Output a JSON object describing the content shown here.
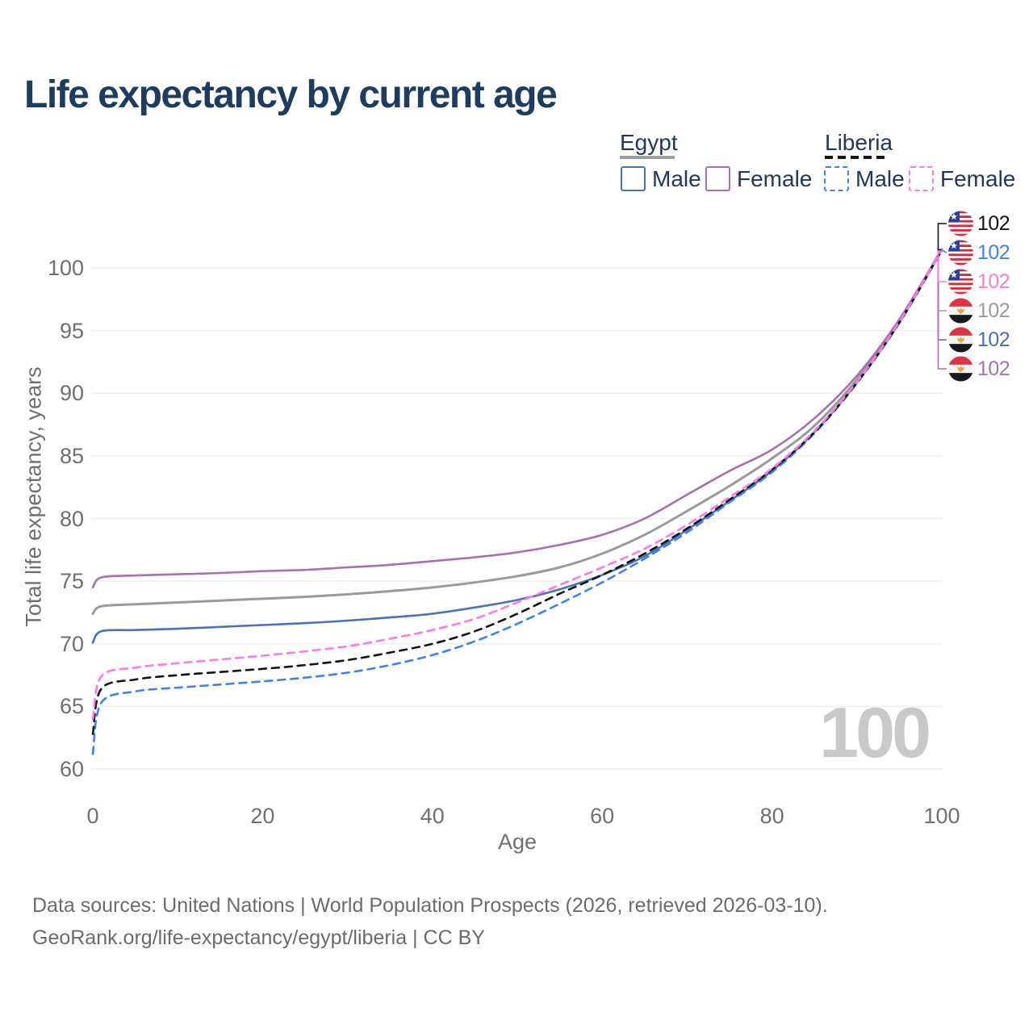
{
  "title": "Life expectancy by current age",
  "overlay_watermark": "100",
  "footer": {
    "line1": "Data sources: United Nations | World Population Prospects (2026, retrieved 2026-03-10).",
    "line2": "GeoRank.org/life-expectancy/egypt/liberia | CC BY"
  },
  "legend": {
    "groups": [
      {
        "title": "Egypt",
        "underline_style": "solid",
        "underline_color": "#9e9e9e",
        "items": [
          {
            "label": "Male",
            "color": "#4a72b8",
            "dash": false
          },
          {
            "label": "Female",
            "color": "#a96fb1",
            "dash": false
          }
        ]
      },
      {
        "title": "Liberia",
        "underline_style": "dashed",
        "underline_color": "#141414",
        "items": [
          {
            "label": "Male",
            "color": "#3d82f0",
            "dash": true
          },
          {
            "label": "Female",
            "color": "#fb7ae3",
            "dash": true
          }
        ]
      }
    ]
  },
  "chart_data": {
    "type": "line",
    "title": "Life expectancy by current age",
    "xlabel": "Age",
    "ylabel": "Total life expectancy, years",
    "xlim": [
      0,
      100
    ],
    "ylim": [
      58.5,
      102.5
    ],
    "x_ticks": [
      0,
      20,
      40,
      60,
      80,
      100
    ],
    "y_ticks": [
      60,
      65,
      70,
      75,
      80,
      85,
      90,
      95,
      100
    ],
    "grid": "horizontal",
    "legend_position": "top-right",
    "gridline_color": "#ececec",
    "ages": [
      0,
      1,
      5,
      10,
      15,
      20,
      25,
      30,
      35,
      40,
      45,
      50,
      55,
      60,
      65,
      70,
      75,
      80,
      85,
      90,
      95,
      100
    ],
    "series": [
      {
        "id": "egypt-all",
        "name": "Egypt",
        "group": "Egypt",
        "kind": "Overall",
        "color": "#9a9a9a",
        "dash": false,
        "width": 3,
        "flag": "egypt",
        "flag_order": 3,
        "end_label": "102",
        "values": [
          72.4,
          73.0,
          73.15,
          73.3,
          73.45,
          73.6,
          73.75,
          73.95,
          74.2,
          74.5,
          74.9,
          75.4,
          76.1,
          77.2,
          78.7,
          80.6,
          82.6,
          84.8,
          87.4,
          91.1,
          95.8,
          101.48
        ]
      },
      {
        "id": "egypt-female",
        "name": "Egypt Female",
        "group": "Egypt",
        "kind": "Female",
        "color": "#a96fb1",
        "dash": false,
        "width": 2.6,
        "flag": "egypt",
        "flag_order": 5,
        "end_label": "102",
        "values": [
          74.5,
          75.3,
          75.45,
          75.55,
          75.65,
          75.8,
          75.9,
          76.1,
          76.3,
          76.6,
          76.9,
          77.3,
          77.9,
          78.7,
          80.0,
          81.9,
          83.8,
          85.5,
          88.0,
          91.4,
          95.9,
          101.5
        ]
      },
      {
        "id": "egypt-male",
        "name": "Egypt Male",
        "group": "Egypt",
        "kind": "Male",
        "color": "#4a72b8",
        "dash": false,
        "width": 2.6,
        "flag": "egypt",
        "flag_order": 4,
        "end_label": "102",
        "values": [
          70.1,
          71.0,
          71.1,
          71.2,
          71.35,
          71.5,
          71.65,
          71.85,
          72.1,
          72.4,
          72.9,
          73.5,
          74.35,
          75.5,
          77.0,
          79.1,
          81.4,
          83.8,
          86.9,
          90.85,
          95.65,
          101.43
        ]
      },
      {
        "id": "liberia-male",
        "name": "Liberia Male",
        "group": "Liberia",
        "kind": "Male",
        "color": "#3d82f0",
        "dash": true,
        "width": 2.6,
        "flag": "liberia",
        "flag_order": 1,
        "end_label": "102",
        "values": [
          61.2,
          65.3,
          66.2,
          66.5,
          66.75,
          67.0,
          67.3,
          67.7,
          68.3,
          69.1,
          70.2,
          71.6,
          73.2,
          74.9,
          76.8,
          78.9,
          81.3,
          83.7,
          86.8,
          90.8,
          95.6,
          101.4
        ]
      },
      {
        "id": "liberia-all",
        "name": "Liberia",
        "group": "Liberia",
        "kind": "Overall",
        "color": "#141414",
        "dash": true,
        "width": 2.6,
        "flag": "liberia",
        "flag_order": 0,
        "end_label": "102",
        "values": [
          62.8,
          66.4,
          67.15,
          67.5,
          67.75,
          68.0,
          68.3,
          68.7,
          69.3,
          70.0,
          71.0,
          72.4,
          74.0,
          75.5,
          77.2,
          79.2,
          81.5,
          83.9,
          86.9,
          90.85,
          95.65,
          101.42
        ]
      },
      {
        "id": "liberia-female",
        "name": "Liberia Female",
        "group": "Liberia",
        "kind": "Female",
        "color": "#fb7ae3",
        "dash": true,
        "width": 2.6,
        "flag": "liberia",
        "flag_order": 2,
        "end_label": "102",
        "values": [
          64.0,
          67.4,
          68.1,
          68.45,
          68.75,
          69.05,
          69.4,
          69.8,
          70.4,
          71.1,
          72.0,
          73.3,
          74.7,
          76.1,
          77.6,
          79.5,
          81.7,
          84.0,
          87.0,
          90.9,
          95.7,
          101.45
        ]
      }
    ],
    "flag_colors": {
      "liberia": {
        "red": "#d8293a",
        "white": "#ffffff",
        "blue": "#2b3f9e",
        "star": "#ffffff"
      },
      "egypt": {
        "red": "#dd3445",
        "white": "#f3f3f3",
        "black": "#17181d",
        "eagle": "#eda23f"
      }
    }
  }
}
